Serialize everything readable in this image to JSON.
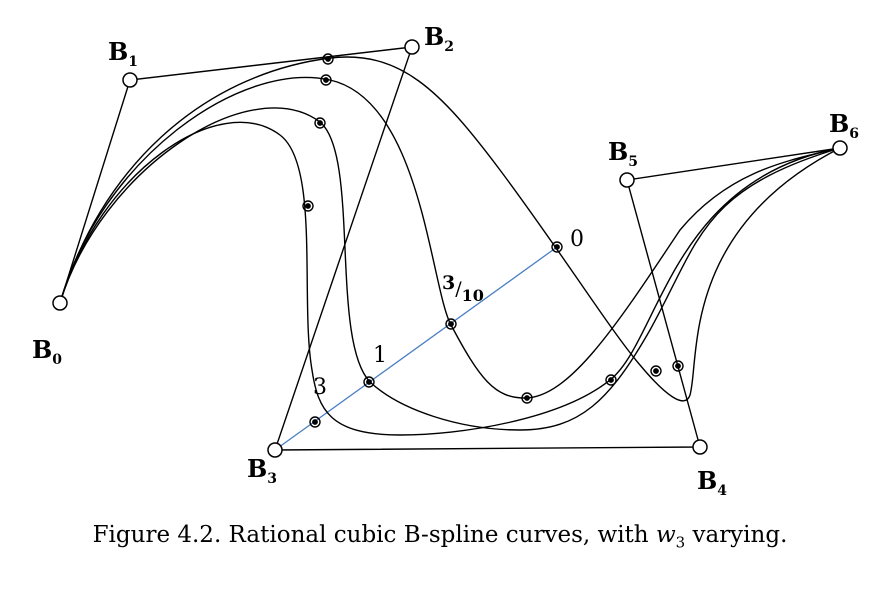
{
  "figure": {
    "control_points": [
      {
        "name": "B",
        "sub": "0"
      },
      {
        "name": "B",
        "sub": "1"
      },
      {
        "name": "B",
        "sub": "2"
      },
      {
        "name": "B",
        "sub": "3"
      },
      {
        "name": "B",
        "sub": "4"
      },
      {
        "name": "B",
        "sub": "5"
      },
      {
        "name": "B",
        "sub": "6"
      }
    ],
    "weight_labels": {
      "w0": "0",
      "w3_10_num": "3",
      "w3_10_den": "10",
      "w1": "1",
      "w3": "3"
    },
    "caption": {
      "prefix": "Figure 4.2. Rational cubic B-spline curves, with ",
      "var": "w",
      "var_sub": "3",
      "suffix": " varying."
    }
  }
}
